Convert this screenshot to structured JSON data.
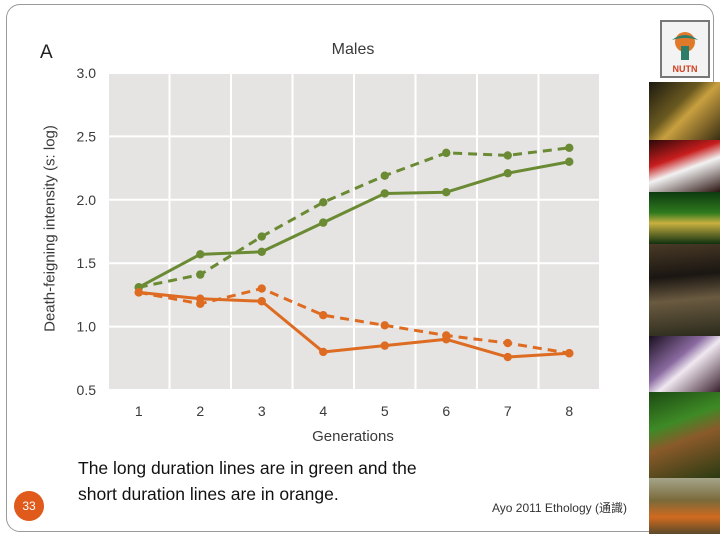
{
  "chart_data": {
    "type": "line",
    "panel_letter": "A",
    "title": "Males",
    "xlabel": "Generations",
    "ylabel": "Death-feigning intensity (s: log)",
    "x": [
      1,
      2,
      3,
      4,
      5,
      6,
      7,
      8
    ],
    "x_tick_labels": [
      "1",
      "2",
      "3",
      "4",
      "5",
      "6",
      "7",
      "8"
    ],
    "ylim": [
      0.5,
      3.0
    ],
    "y_ticks": [
      0.5,
      1.0,
      1.5,
      2.0,
      2.5,
      3.0
    ],
    "y_tick_labels": [
      "0.5",
      "1.0",
      "1.5",
      "2.0",
      "2.5",
      "3.0"
    ],
    "grid": true,
    "series": [
      {
        "name": "Long duration (solid)",
        "color": "#6b8a34",
        "dashed": false,
        "values": [
          1.31,
          1.57,
          1.59,
          1.82,
          2.05,
          2.06,
          2.21,
          2.3
        ]
      },
      {
        "name": "Long duration (dashed)",
        "color": "#6b8a34",
        "dashed": true,
        "values": [
          1.31,
          1.41,
          1.71,
          1.98,
          2.19,
          2.37,
          2.35,
          2.41
        ]
      },
      {
        "name": "Short duration (solid)",
        "color": "#de6b22",
        "dashed": false,
        "values": [
          1.27,
          1.22,
          1.2,
          0.8,
          0.85,
          0.9,
          0.76,
          0.79
        ]
      },
      {
        "name": "Short duration (dashed)",
        "color": "#de6b22",
        "dashed": true,
        "values": [
          1.27,
          1.18,
          1.3,
          1.09,
          1.01,
          0.93,
          0.87,
          0.79
        ]
      }
    ]
  },
  "caption": {
    "line1": "The long duration lines are in green and the",
    "line2": "short duration lines are in orange."
  },
  "footer": {
    "text": "Ayo 2011 Ethology (通識)",
    "page_number": "33"
  },
  "logo": {
    "label": "NUTN"
  },
  "colors": {
    "plot_bg": "#e5e4e2",
    "grid": "#ffffff",
    "accent": "#e05a1c"
  }
}
